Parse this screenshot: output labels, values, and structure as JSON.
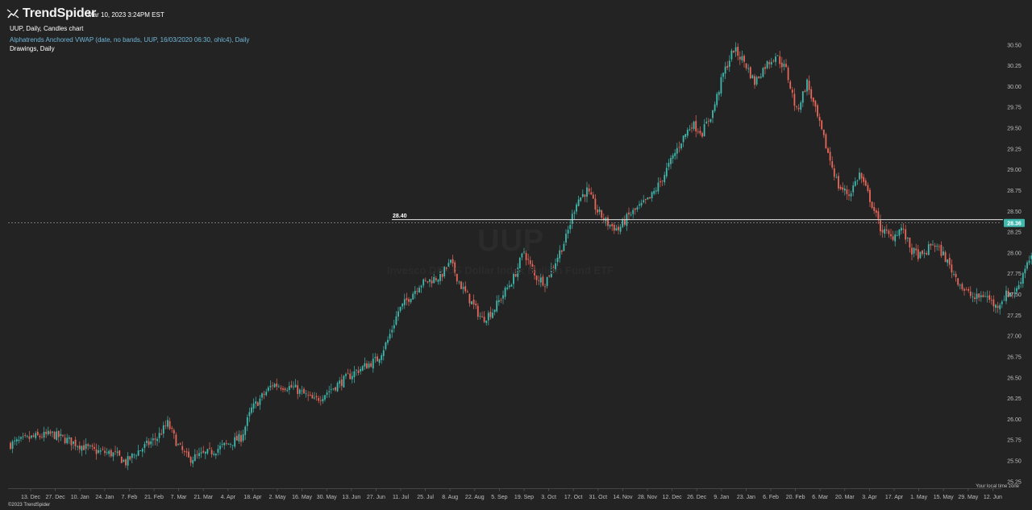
{
  "header": {
    "brand": "TrendSpider",
    "timestamp": "Mar 10, 2023 3:24PM EST",
    "chart_label": "UUP, Daily, Candles chart",
    "indicator_label": "Alphatrends Anchored VWAP (date, no bands, UUP, 16/03/2020 06:30, ohlc4), Daily",
    "drawings_label": "Drawings, Daily"
  },
  "watermark": {
    "symbol": "UUP",
    "name": "Invesco DB US Dollar Index Bullish Fund ETF"
  },
  "footer": {
    "timezone": "Your local time zone",
    "copyright": "©2023 TrendSpider"
  },
  "colors": {
    "background": "#232323",
    "up": "#3fb8ad",
    "down": "#e9675a",
    "axis_text": "#bdbdbd",
    "price_badge": "#3fb8ad"
  },
  "chart_data": {
    "type": "candlestick",
    "ylim": [
      25.2,
      30.75
    ],
    "y_ticks": [
      "25.25",
      "25.50",
      "25.75",
      "26.00",
      "26.25",
      "26.50",
      "26.75",
      "27.00",
      "27.25",
      "27.50",
      "27.75",
      "28.00",
      "28.25",
      "28.50",
      "28.75",
      "29.00",
      "29.25",
      "29.50",
      "29.75",
      "30.00",
      "30.25",
      "30.50"
    ],
    "x_ticks": [
      "13. Dec",
      "27. Dec",
      "10. Jan",
      "24. Jan",
      "7. Feb",
      "21. Feb",
      "7. Mar",
      "21. Mar",
      "4. Apr",
      "18. Apr",
      "2. May",
      "16. May",
      "30. May",
      "13. Jun",
      "27. Jun",
      "11. Jul",
      "25. Jul",
      "8. Aug",
      "22. Aug",
      "5. Sep",
      "19. Sep",
      "3. Oct",
      "17. Oct",
      "31. Oct",
      "14. Nov",
      "28. Nov",
      "12. Dec",
      "26. Dec",
      "9. Jan",
      "23. Jan",
      "6. Feb",
      "20. Feb",
      "6. Mar",
      "20. Mar",
      "3. Apr",
      "17. Apr",
      "1. May",
      "15. May",
      "29. May",
      "12. Jun"
    ],
    "current_price": "28.36",
    "horizontal_line": {
      "label": "28.40",
      "value": 28.4
    },
    "close_path": [
      [
        0,
        25.7
      ],
      [
        10,
        25.78
      ],
      [
        20,
        25.82
      ],
      [
        30,
        25.72
      ],
      [
        40,
        25.62
      ],
      [
        50,
        25.58
      ],
      [
        55,
        25.48
      ],
      [
        60,
        25.6
      ],
      [
        70,
        25.78
      ],
      [
        75,
        25.95
      ],
      [
        80,
        25.68
      ],
      [
        85,
        25.52
      ],
      [
        95,
        25.6
      ],
      [
        105,
        25.72
      ],
      [
        110,
        25.78
      ],
      [
        115,
        26.12
      ],
      [
        125,
        26.42
      ],
      [
        135,
        26.38
      ],
      [
        145,
        26.22
      ],
      [
        155,
        26.4
      ],
      [
        165,
        26.58
      ],
      [
        175,
        26.72
      ],
      [
        180,
        26.95
      ],
      [
        185,
        27.3
      ],
      [
        195,
        27.62
      ],
      [
        205,
        27.72
      ],
      [
        210,
        27.88
      ],
      [
        215,
        27.6
      ],
      [
        220,
        27.4
      ],
      [
        225,
        27.2
      ],
      [
        230,
        27.3
      ],
      [
        235,
        27.5
      ],
      [
        240,
        27.7
      ],
      [
        245,
        28.02
      ],
      [
        250,
        27.72
      ],
      [
        255,
        27.65
      ],
      [
        260,
        27.9
      ],
      [
        265,
        28.18
      ],
      [
        270,
        28.62
      ],
      [
        275,
        28.75
      ],
      [
        280,
        28.5
      ],
      [
        285,
        28.35
      ],
      [
        290,
        28.28
      ],
      [
        295,
        28.45
      ],
      [
        305,
        28.65
      ],
      [
        310,
        28.85
      ],
      [
        315,
        29.1
      ],
      [
        320,
        29.35
      ],
      [
        325,
        29.55
      ],
      [
        330,
        29.45
      ],
      [
        335,
        29.7
      ],
      [
        340,
        30.15
      ],
      [
        345,
        30.45
      ],
      [
        350,
        30.3
      ],
      [
        355,
        30.05
      ],
      [
        360,
        30.25
      ],
      [
        365,
        30.38
      ],
      [
        370,
        30.2
      ],
      [
        375,
        29.7
      ],
      [
        380,
        30.05
      ],
      [
        385,
        29.62
      ],
      [
        390,
        29.2
      ],
      [
        395,
        28.8
      ],
      [
        400,
        28.7
      ],
      [
        405,
        28.95
      ],
      [
        410,
        28.65
      ],
      [
        415,
        28.3
      ],
      [
        420,
        28.18
      ],
      [
        425,
        28.3
      ],
      [
        430,
        28.02
      ],
      [
        435,
        27.95
      ],
      [
        440,
        28.12
      ],
      [
        445,
        27.98
      ],
      [
        450,
        27.75
      ],
      [
        455,
        27.55
      ],
      [
        460,
        27.45
      ],
      [
        465,
        27.5
      ],
      [
        470,
        27.35
      ],
      [
        475,
        27.5
      ],
      [
        480,
        27.55
      ],
      [
        485,
        27.9
      ],
      [
        490,
        28.05
      ],
      [
        495,
        28.2
      ],
      [
        500,
        28.35
      ],
      [
        505,
        28.42
      ],
      [
        510,
        28.3
      ],
      [
        515,
        28.5
      ],
      [
        519,
        28.36
      ]
    ]
  }
}
